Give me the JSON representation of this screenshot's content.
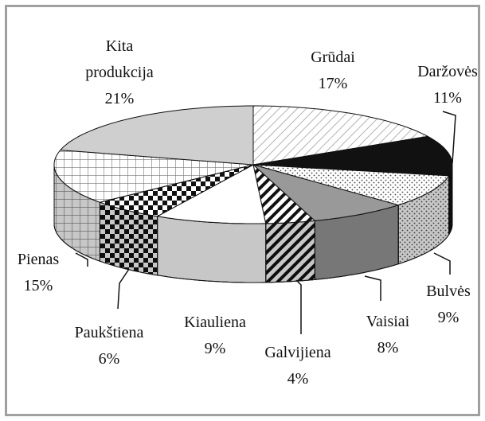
{
  "chart_data": {
    "type": "pie3d",
    "categories": [
      "Grūdai",
      "Daržovės",
      "Bulvės",
      "Vaisiai",
      "Galvijiena",
      "Kiauliena",
      "Paukštiena",
      "Pienas",
      "Kita produkcija"
    ],
    "values": [
      17,
      11,
      9,
      8,
      4,
      9,
      6,
      15,
      21
    ],
    "value_labels": [
      "17%",
      "11%",
      "9%",
      "8%",
      "4%",
      "9%",
      "6%",
      "15%",
      "21%"
    ],
    "start_angle": 90,
    "direction": "clockwise"
  }
}
